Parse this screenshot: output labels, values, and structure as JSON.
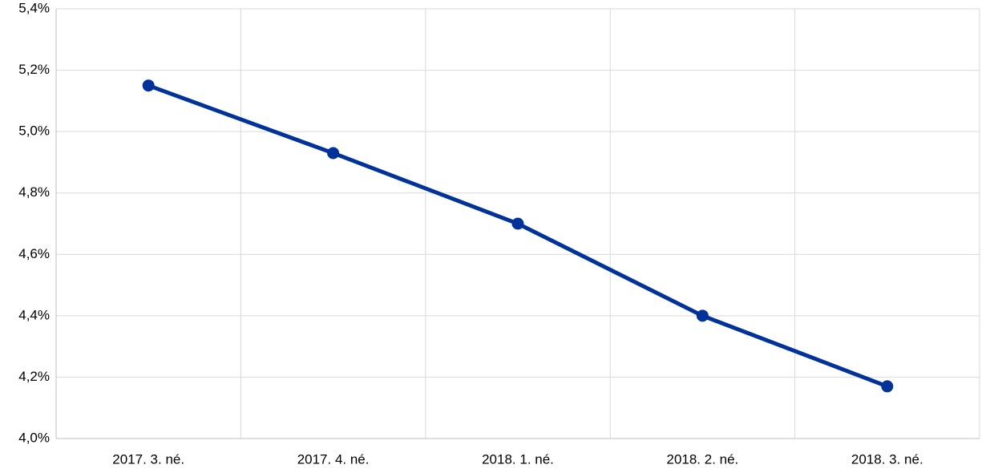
{
  "chart_data": {
    "type": "line",
    "categories": [
      "2017. 3. né.",
      "2017. 4. né.",
      "2018. 1. né.",
      "2018. 2. né.",
      "2018. 3. né."
    ],
    "series": [
      {
        "name": null,
        "color": "#003299",
        "values": [
          5.15,
          4.93,
          4.7,
          4.4,
          4.17
        ]
      }
    ],
    "ylim": [
      4.0,
      5.4
    ],
    "yticks": [
      {
        "value": 4.0,
        "label": "4,0%"
      },
      {
        "value": 4.2,
        "label": "4,2%"
      },
      {
        "value": 4.4,
        "label": "4,4%"
      },
      {
        "value": 4.6,
        "label": "4,6%"
      },
      {
        "value": 4.8,
        "label": "4,8%"
      },
      {
        "value": 5.0,
        "label": "5,0%"
      },
      {
        "value": 5.2,
        "label": "5,2%"
      },
      {
        "value": 5.4,
        "label": "5,4%"
      }
    ],
    "grid": true
  }
}
